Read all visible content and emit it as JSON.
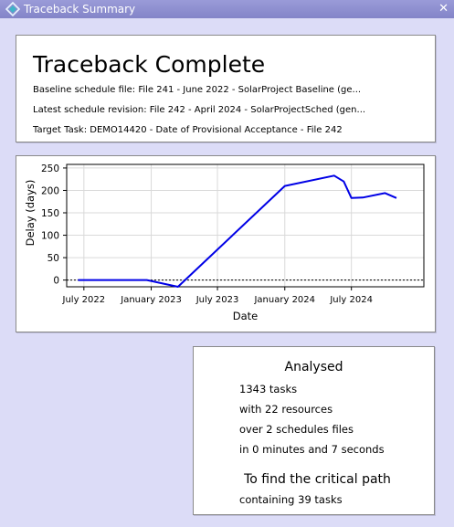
{
  "window": {
    "title": "Traceback Summary",
    "close_label": "✕",
    "icon": "traceback-app-icon"
  },
  "header": {
    "title": "Traceback Complete",
    "baseline": "Baseline schedule file: File 241 - June 2022 - SolarProject Baseline (ge...",
    "latest": "Latest schedule revision: File 242 - April 2024 - SolarProjectSched (gen...",
    "target": "Target Task: DEMO14420 - Date of Provisional Acceptance - File 242"
  },
  "chart_data": {
    "type": "line",
    "xlabel": "Date",
    "ylabel": "Delay (days)",
    "x_ticks": [
      "July 2022",
      "January 2023",
      "July 2023",
      "January 2024",
      "July 2024"
    ],
    "x_tick_dates": [
      "2022-07-01",
      "2023-01-01",
      "2023-07-01",
      "2024-01-01",
      "2024-07-01"
    ],
    "xlim": [
      "2022-05-15",
      "2025-01-15"
    ],
    "y_ticks": [
      0,
      50,
      100,
      150,
      200,
      250
    ],
    "ylim": [
      -15,
      258
    ],
    "grid": true,
    "zero_line": "dotted",
    "color": "#0000e6",
    "series": [
      {
        "x": [
          "2022-06-15",
          "2022-09-15",
          "2022-12-20",
          "2023-03-15",
          "2024-01-01",
          "2024-05-15",
          "2024-06-10",
          "2024-07-01",
          "2024-08-01",
          "2024-10-01",
          "2024-11-01"
        ],
        "y": [
          0,
          0,
          0,
          -15,
          210,
          233,
          220,
          183,
          184,
          194,
          183
        ]
      }
    ]
  },
  "analysis": {
    "title": "Analysed",
    "tasks": "1343 tasks",
    "resources": "with 22 resources",
    "files": "over 2 schedules files",
    "time": "in 0 minutes and 7 seconds",
    "critical_heading": "To find the critical path",
    "containing": "containing 39 tasks"
  }
}
